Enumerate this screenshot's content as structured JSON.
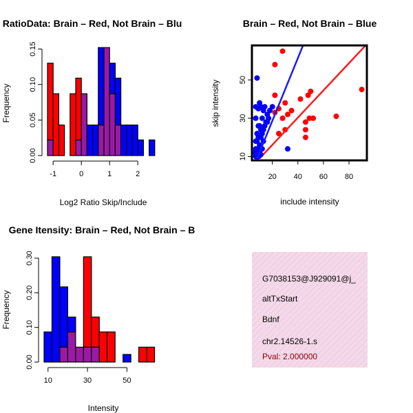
{
  "colors": {
    "red": "#ff0000",
    "blue": "#0000ff",
    "overlap": "#9a1aa6",
    "panel_pink": "#f4d9ea",
    "dark_red": "#8b0000",
    "red_line": "#ff1a1a",
    "blue_line": "#1a1aff"
  },
  "chart_data": [
    {
      "id": "ratio-hist",
      "type": "bar",
      "title": "RatioData: Brain – Red, Not Brain – Blu",
      "xlabel": "Log2 Ratio Skip/Include",
      "ylabel": "Frequency",
      "xlim": [
        -1.2,
        2.8
      ],
      "ylim": [
        0,
        0.155
      ],
      "xticks": [
        -1,
        0,
        1,
        2
      ],
      "yticks": [
        0.0,
        0.05,
        0.1,
        0.15
      ],
      "ytick_labels": [
        "0.00",
        "0.05",
        "0.10",
        "0.15"
      ],
      "bin_width": 0.2,
      "bin_starts": [
        -1.2,
        -1.0,
        -0.8,
        -0.6,
        -0.4,
        -0.2,
        0.0,
        0.2,
        0.4,
        0.6,
        0.8,
        1.0,
        1.2,
        1.4,
        1.6,
        1.8,
        2.0,
        2.2,
        2.4
      ],
      "series": [
        {
          "name": "Brain",
          "color": "red",
          "values": [
            0.13,
            0.087,
            0.043,
            0,
            0.087,
            0.109,
            0.087,
            0,
            0,
            0.043,
            0.152,
            0.087,
            0.043,
            0,
            0,
            0,
            0,
            0,
            0
          ]
        },
        {
          "name": "Not Brain",
          "color": "blue",
          "values": [
            0.022,
            0,
            0,
            0,
            0,
            0.022,
            0.087,
            0.043,
            0.043,
            0.152,
            0.152,
            0.13,
            0.109,
            0.043,
            0.043,
            0.043,
            0.022,
            0,
            0.022
          ]
        }
      ]
    },
    {
      "id": "scatter",
      "type": "scatter",
      "title": "Brain – Red, Not Brain – Blue",
      "xlabel": "include intensity",
      "ylabel": "skip intensity",
      "xlim": [
        4,
        94
      ],
      "ylim": [
        8,
        68
      ],
      "xticks": [
        20,
        40,
        60,
        80
      ],
      "yticks": [
        10,
        30,
        50
      ],
      "series": [
        {
          "name": "Brain",
          "color": "red",
          "fit_line": [
            [
              10,
              9
            ],
            [
              93,
              68
            ]
          ],
          "points": [
            [
              28,
              65
            ],
            [
              22,
              58
            ],
            [
              25,
              35
            ],
            [
              28,
              30
            ],
            [
              30,
              38
            ],
            [
              32,
              32
            ],
            [
              22,
              42
            ],
            [
              25,
              22
            ],
            [
              30,
              24
            ],
            [
              35,
              34
            ],
            [
              42,
              40
            ],
            [
              46,
              28
            ],
            [
              46,
              24
            ],
            [
              46,
              20
            ],
            [
              48,
              42
            ],
            [
              50,
              44
            ],
            [
              49,
              30
            ],
            [
              52,
              30
            ],
            [
              70,
              31
            ],
            [
              90,
              45
            ],
            [
              22,
              33
            ]
          ]
        },
        {
          "name": "Not Brain",
          "color": "blue",
          "fit_line": [
            [
              8,
              9
            ],
            [
              44,
              68
            ]
          ],
          "points": [
            [
              8,
              10
            ],
            [
              8,
              12
            ],
            [
              9,
              14
            ],
            [
              10,
              16
            ],
            [
              8,
              18
            ],
            [
              9,
              20
            ],
            [
              11,
              20
            ],
            [
              12,
              22
            ],
            [
              13,
              24
            ],
            [
              10,
              26
            ],
            [
              14,
              26
            ],
            [
              15,
              28
            ],
            [
              16,
              28
            ],
            [
              12,
              30
            ],
            [
              16,
              32
            ],
            [
              18,
              34
            ],
            [
              20,
              36
            ],
            [
              14,
              36
            ],
            [
              10,
              38
            ],
            [
              13,
              34
            ],
            [
              17,
              30
            ],
            [
              9,
              26
            ],
            [
              8,
              22
            ],
            [
              7,
              14
            ],
            [
              6,
              12
            ],
            [
              7,
              18
            ],
            [
              10,
              12
            ],
            [
              12,
              14
            ],
            [
              11,
              11
            ],
            [
              9,
              10
            ],
            [
              7,
              10
            ],
            [
              13,
              18
            ],
            [
              11,
              24
            ],
            [
              32,
              14
            ],
            [
              9,
              35
            ],
            [
              7,
              30
            ],
            [
              7,
              36
            ],
            [
              8,
              51
            ],
            [
              11,
              36
            ]
          ]
        }
      ]
    },
    {
      "id": "intensity-hist",
      "type": "bar",
      "title": "Gene Itensity: Brain – Red, Not Brain – B",
      "xlabel": "Intensity",
      "ylabel": "Frequency",
      "xlim": [
        8,
        68
      ],
      "ylim": [
        0,
        0.31
      ],
      "xticks": [
        10,
        30,
        50
      ],
      "yticks": [
        0.0,
        0.1,
        0.2,
        0.3
      ],
      "ytick_labels": [
        "0.00",
        "0.10",
        "0.20",
        "0.30"
      ],
      "bin_width": 4,
      "bin_starts": [
        8,
        12,
        16,
        20,
        24,
        28,
        32,
        36,
        40,
        44,
        48,
        52,
        56,
        60
      ],
      "series": [
        {
          "name": "Brain",
          "color": "red",
          "values": [
            0,
            0,
            0.043,
            0.087,
            0.043,
            0.304,
            0.13,
            0.087,
            0.087,
            0,
            0,
            0,
            0.043,
            0.043
          ]
        },
        {
          "name": "Not Brain",
          "color": "blue",
          "values": [
            0.087,
            0.304,
            0.217,
            0.13,
            0.043,
            0.043,
            0.043,
            0,
            0,
            0,
            0.022,
            0,
            0,
            0
          ]
        }
      ]
    }
  ],
  "info": {
    "id": "G7038153@J929091@j_",
    "event": "altTxStart",
    "gene": "Bdnf",
    "locus": "chr2.14526-1.s",
    "pval": "Pval: 2.000000"
  }
}
